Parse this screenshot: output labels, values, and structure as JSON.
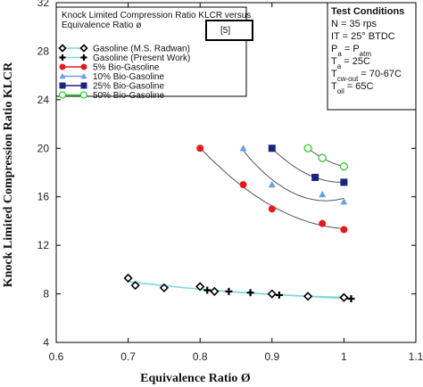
{
  "chart_data": {
    "type": "scatter",
    "xlabel": "Equivalence Ratio Ø",
    "ylabel": "Knock Limited Compression Ratio KLCR",
    "xlim": [
      0.6,
      1.1
    ],
    "ylim": [
      4,
      32
    ],
    "xticks": [
      "0.6",
      "0.7",
      "0.8",
      "0.9",
      "1",
      "1.1"
    ],
    "yticks": [
      "4",
      "8",
      "12",
      "16",
      "20",
      "24",
      "28",
      "32"
    ],
    "grid": false,
    "legend": {
      "title": "Knock Limited Compression Ratio KLCR versus Equivalence Ratio ø",
      "ref": "[5]",
      "placement": "top-left"
    },
    "conditions": {
      "title": "Test Conditions",
      "lines": [
        "N = 35 rps",
        "IT = 25° BTDC",
        "Pa = Patm",
        "Ta = 25C",
        "Tcw-out = 70-67C",
        "Toil = 65C"
      ]
    },
    "series": [
      {
        "name": "Gasoline  (M.S. Radwan)",
        "marker": "diamond-open",
        "color": "#000000",
        "line_color": "#7fd7df",
        "x": [
          0.7,
          0.71,
          0.75,
          0.8,
          0.82,
          0.9,
          0.95,
          1.0
        ],
        "y": [
          9.3,
          8.7,
          8.5,
          8.6,
          8.2,
          8.0,
          7.8,
          7.7
        ]
      },
      {
        "name": "Gasoline (Present Work)",
        "marker": "plus",
        "color": "#000000",
        "line_color": "#7fd7df",
        "x": [
          0.81,
          0.84,
          0.87,
          0.91,
          1.01
        ],
        "y": [
          8.3,
          8.2,
          8.1,
          7.9,
          7.6
        ]
      },
      {
        "name": "5% Bio-Gasoline",
        "marker": "circle",
        "color": "#e41a1c",
        "line_color": "#555555",
        "x": [
          0.8,
          0.86,
          0.9,
          0.97,
          1.0
        ],
        "y": [
          20.0,
          17.0,
          15.0,
          13.8,
          13.3
        ]
      },
      {
        "name": "10% Bio-Gasoline",
        "marker": "triangle",
        "color": "#6a9fe0",
        "line_color": "#555555",
        "x": [
          0.86,
          0.9,
          0.97,
          1.0
        ],
        "y": [
          20.0,
          17.0,
          16.2,
          15.6
        ]
      },
      {
        "name": "25% Bio-Gasoline",
        "marker": "square",
        "color": "#1a237e",
        "line_color": "#555555",
        "x": [
          0.9,
          0.96,
          1.0
        ],
        "y": [
          20.0,
          17.6,
          17.2
        ]
      },
      {
        "name": "50% Bio-Gasoline",
        "marker": "circle-open",
        "color": "#33cc33",
        "line_color": "#555555",
        "x": [
          0.95,
          0.97,
          1.0
        ],
        "y": [
          20.0,
          19.2,
          18.5
        ]
      }
    ]
  }
}
